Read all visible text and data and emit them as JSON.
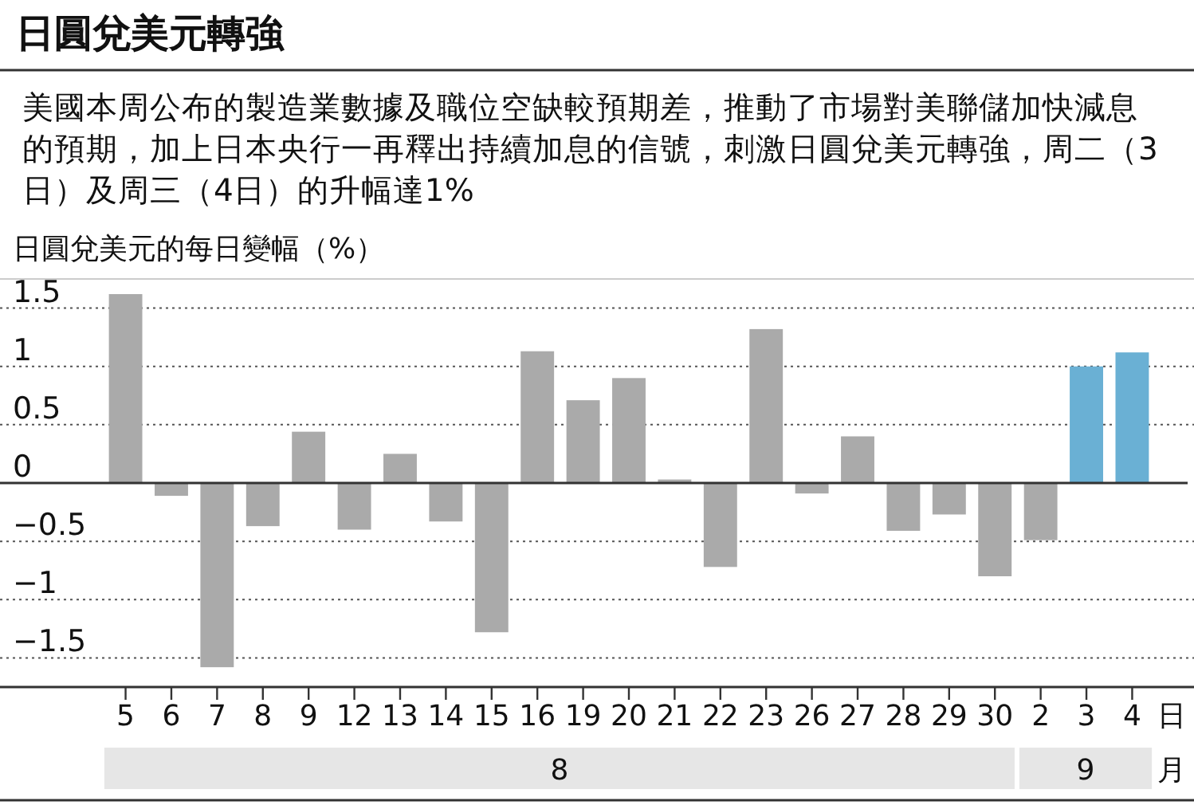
{
  "chart_data": {
    "type": "bar",
    "title": "日圓兌美元轉強",
    "subtitle": "美國本周公布的製造業數據及職位空缺較預期差，推動了市場對美聯儲加快減息的預期，加上日本央行一再釋出持續加息的信號，刺激日圓兌美元轉強，周二（3日）及周三（4日）的升幅達1%",
    "ylabel": "日圓兌美元的每日變幅（%）",
    "categories": [
      "5",
      "6",
      "7",
      "8",
      "9",
      "12",
      "13",
      "14",
      "15",
      "16",
      "19",
      "20",
      "21",
      "22",
      "23",
      "26",
      "27",
      "28",
      "29",
      "30",
      "2",
      "3",
      "4"
    ],
    "values": [
      1.62,
      -0.11,
      -1.58,
      -0.37,
      0.44,
      -0.4,
      0.25,
      -0.33,
      -1.28,
      1.13,
      0.71,
      0.9,
      0.03,
      -0.72,
      1.32,
      -0.09,
      0.4,
      -0.41,
      -0.27,
      -0.8,
      -0.49,
      1.0,
      1.12
    ],
    "colors": [
      "#aaaaaa",
      "#aaaaaa",
      "#aaaaaa",
      "#aaaaaa",
      "#aaaaaa",
      "#aaaaaa",
      "#aaaaaa",
      "#aaaaaa",
      "#aaaaaa",
      "#aaaaaa",
      "#aaaaaa",
      "#aaaaaa",
      "#aaaaaa",
      "#aaaaaa",
      "#aaaaaa",
      "#aaaaaa",
      "#aaaaaa",
      "#aaaaaa",
      "#aaaaaa",
      "#aaaaaa",
      "#aaaaaa",
      "#6ab0d4",
      "#6ab0d4"
    ],
    "ylim": [
      -1.75,
      1.75
    ],
    "yticks": [
      {
        "value": -1.5,
        "label": "−1.5"
      },
      {
        "value": -1,
        "label": "−1"
      },
      {
        "value": -0.5,
        "label": "−0.5"
      },
      0,
      0.5,
      1,
      1.5
    ],
    "grid": "y",
    "annotations": [
      "8",
      "9",
      "日",
      "月"
    ]
  }
}
